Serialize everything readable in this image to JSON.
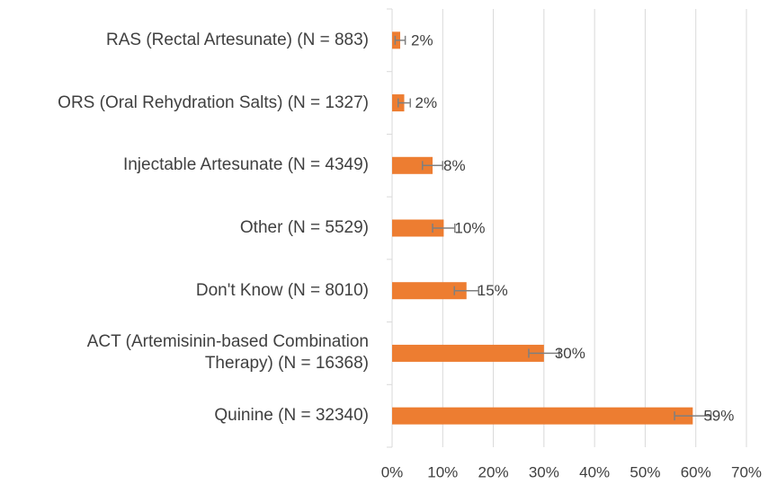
{
  "chart_data": {
    "type": "barh",
    "categories": [
      "RAS (Rectal Artesunate) (N = 883)",
      "ORS (Oral Rehydration Salts) (N = 1327)",
      "Injectable Artesunate (N = 4349)",
      "Other (N = 5529)",
      "Don't Know (N = 8010)",
      "ACT (Artemisinin-based Combination Therapy) (N = 16368)",
      "Quinine (N = 32340)"
    ],
    "values": [
      1.6,
      2.4,
      8.0,
      10.2,
      14.7,
      30.0,
      59.4
    ],
    "errors": [
      1.0,
      1.2,
      2.0,
      2.2,
      2.4,
      3.0,
      3.6
    ],
    "value_labels": [
      "2%",
      "2%",
      "8%",
      "10%",
      "15%",
      "30%",
      "59%"
    ],
    "color": "#ed7d31",
    "error_color": "#7f7f7f",
    "xlim": [
      0,
      70
    ],
    "xticks": [
      {
        "value": 0,
        "label": "0%"
      },
      {
        "value": 10,
        "label": "10%"
      },
      {
        "value": 20,
        "label": "20%"
      },
      {
        "value": 30,
        "label": "30%"
      },
      {
        "value": 40,
        "label": "40%"
      },
      {
        "value": 50,
        "label": "50%"
      },
      {
        "value": 60,
        "label": "60%"
      },
      {
        "value": 70,
        "label": "70%"
      }
    ],
    "grid": true
  }
}
